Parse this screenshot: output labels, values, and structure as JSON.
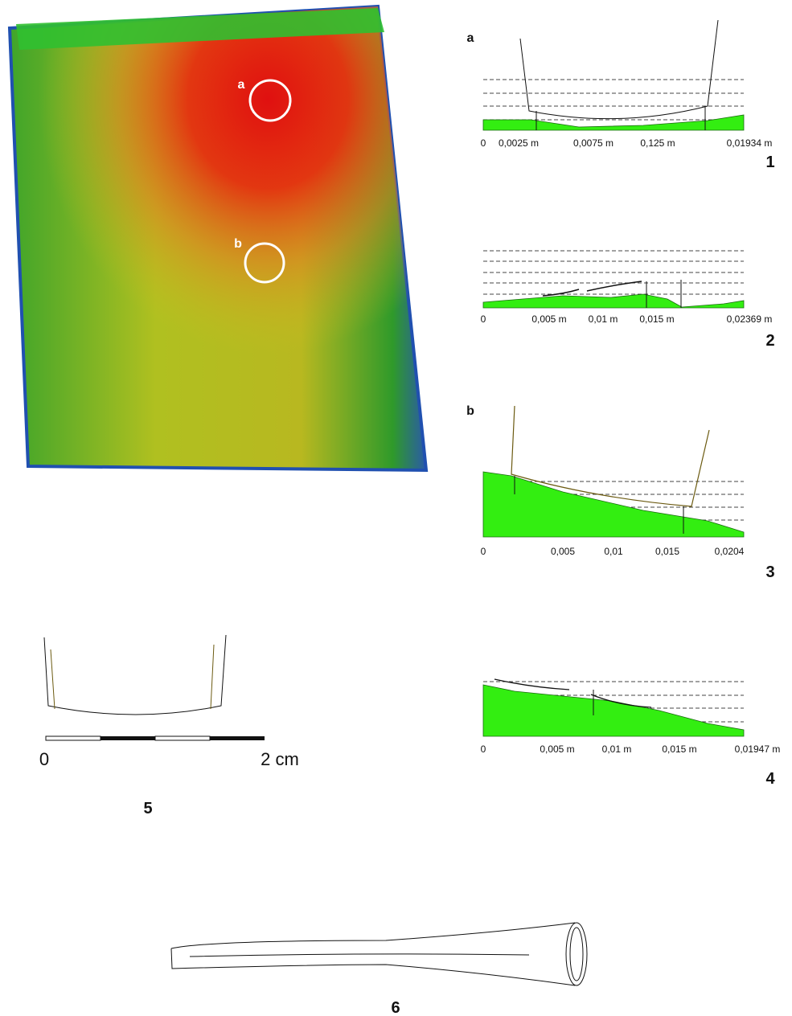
{
  "image_markers": [
    "a",
    "b"
  ],
  "panels": [
    {
      "letter": "a",
      "axis_labels": [
        "0",
        "0,0025 m",
        "0,0075 m",
        "0,125 m",
        "0,01934 m"
      ],
      "number": "1"
    },
    {
      "axis_labels": [
        "0",
        "0,005 m",
        "0,01 m",
        "0,015 m",
        "0,02369 m"
      ],
      "number": "2"
    },
    {
      "letter": "b",
      "axis_labels": [
        "0",
        "0,005",
        "0,01",
        "0,015",
        "0,0204"
      ],
      "number": "3"
    },
    {
      "axis_labels": [
        "0",
        "0,005 m",
        "0,01 m",
        "0,015 m",
        "0,01947 m"
      ],
      "number": "4"
    }
  ],
  "scale_bar": {
    "start": "0",
    "end": "2 cm"
  },
  "figure_5": {
    "number": "5"
  },
  "figure_6": {
    "number": "6"
  }
}
